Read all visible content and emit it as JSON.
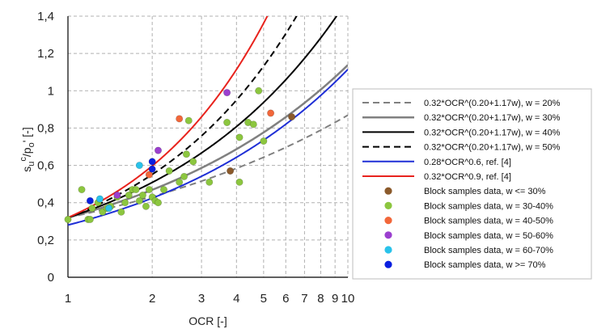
{
  "chart_data": {
    "type": "scatter",
    "x_scale": "log",
    "xlim": [
      1,
      10
    ],
    "ylim": [
      0,
      1.4
    ],
    "grid": true,
    "legend_position": "right",
    "xlabel": "OCR [-]",
    "ylabel": {
      "s": "s",
      "u": "u",
      "c": "c",
      "mid": "/p",
      "o": "o",
      "tail": "' [-]"
    },
    "x_ticks": [
      {
        "v": 1,
        "label": "1"
      },
      {
        "v": 2,
        "label": "2"
      },
      {
        "v": 3,
        "label": "3"
      },
      {
        "v": 4,
        "label": "4"
      },
      {
        "v": 5,
        "label": "5"
      },
      {
        "v": 6,
        "label": "6"
      },
      {
        "v": 7,
        "label": "7"
      },
      {
        "v": 8,
        "label": "8"
      },
      {
        "v": 9,
        "label": "9"
      },
      {
        "v": 10,
        "label": "10"
      }
    ],
    "y_ticks": [
      {
        "v": 0,
        "label": "0"
      },
      {
        "v": 0.2,
        "label": "0,2"
      },
      {
        "v": 0.4,
        "label": "0,4"
      },
      {
        "v": 0.6,
        "label": "0,6"
      },
      {
        "v": 0.8,
        "label": "0,8"
      },
      {
        "v": 1,
        "label": "1"
      },
      {
        "v": 1.2,
        "label": "1,2"
      },
      {
        "v": 1.4,
        "label": "1,4"
      }
    ],
    "curves": [
      {
        "name": "0.32*OCR^(0.20+1.17w), w = 20%",
        "a": 0.32,
        "w": 0.2,
        "formula": "w",
        "color": "#808080",
        "width": 2,
        "dash": "8,5"
      },
      {
        "name": "0.32*OCR^(0.20+1.17w), w = 30%",
        "a": 0.32,
        "w": 0.3,
        "formula": "w",
        "color": "#808080",
        "width": 2.5,
        "dash": ""
      },
      {
        "name": "0.32*OCR^(0.20+1.17w), w = 40%",
        "a": 0.32,
        "w": 0.4,
        "formula": "w",
        "color": "#000000",
        "width": 2,
        "dash": ""
      },
      {
        "name": "0.32*OCR^(0.20+1.17w), w = 50%",
        "a": 0.32,
        "w": 0.5,
        "formula": "w",
        "color": "#000000",
        "width": 2,
        "dash": "8,5"
      },
      {
        "name": "0.28*OCR^0.6, ref. [4]",
        "a": 0.28,
        "m": 0.6,
        "formula": "m",
        "color": "#1f2fd6",
        "width": 2,
        "dash": ""
      },
      {
        "name": "0.32*OCR^0.9, ref. [4]",
        "a": 0.32,
        "m": 0.9,
        "formula": "m",
        "color": "#e8231d",
        "width": 2,
        "dash": ""
      }
    ],
    "series": [
      {
        "name": "Block samples data, w <= 30%",
        "color": "#8b5a2b",
        "points": [
          [
            3.8,
            0.57
          ],
          [
            6.3,
            0.86
          ]
        ]
      },
      {
        "name": "Block samples data, w = 30-40%",
        "color": "#8cc63f",
        "points": [
          [
            1,
            0.31
          ],
          [
            1.12,
            0.47
          ],
          [
            1.18,
            0.31
          ],
          [
            1.22,
            0.37
          ],
          [
            1.28,
            0.4
          ],
          [
            1.33,
            0.35
          ],
          [
            1.38,
            0.37
          ],
          [
            1.42,
            0.38
          ],
          [
            1.5,
            0.43
          ],
          [
            1.55,
            0.35
          ],
          [
            1.6,
            0.4
          ],
          [
            1.65,
            0.44
          ],
          [
            1.7,
            0.47
          ],
          [
            1.75,
            0.47
          ],
          [
            1.8,
            0.41
          ],
          [
            1.85,
            0.44
          ],
          [
            1.9,
            0.38
          ],
          [
            1.95,
            0.47
          ],
          [
            2.0,
            0.43
          ],
          [
            2.05,
            0.41
          ],
          [
            2.1,
            0.4
          ],
          [
            2.2,
            0.47
          ],
          [
            2.3,
            0.57
          ],
          [
            2.5,
            0.51
          ],
          [
            2.65,
            0.66
          ],
          [
            2.7,
            0.84
          ],
          [
            2.8,
            0.62
          ],
          [
            3.2,
            0.51
          ],
          [
            3.7,
            0.83
          ],
          [
            4.1,
            0.51
          ],
          [
            4.1,
            0.75
          ],
          [
            4.4,
            0.83
          ],
          [
            4.6,
            0.82
          ],
          [
            4.8,
            1.0
          ],
          [
            5.0,
            0.73
          ],
          [
            2.6,
            0.54
          ],
          [
            1.2,
            0.31
          ]
        ]
      },
      {
        "name": "Block samples data, w = 40-50%",
        "color": "#f2673a",
        "points": [
          [
            1.95,
            0.55
          ],
          [
            2.5,
            0.85
          ],
          [
            5.3,
            0.88
          ]
        ]
      },
      {
        "name": "Block samples data, w = 50-60%",
        "color": "#9b3fcf",
        "points": [
          [
            1.5,
            0.44
          ],
          [
            2.1,
            0.68
          ],
          [
            3.7,
            0.99
          ]
        ]
      },
      {
        "name": "Block samples data, w = 60-70%",
        "color": "#29c2ea",
        "points": [
          [
            1.3,
            0.42
          ],
          [
            1.4,
            0.37
          ],
          [
            1.8,
            0.6
          ]
        ]
      },
      {
        "name": "Block samples data, w >= 70%",
        "color": "#0a1fe0",
        "points": [
          [
            1.2,
            0.41
          ],
          [
            2.0,
            0.62
          ],
          [
            2.0,
            0.58
          ]
        ]
      }
    ]
  }
}
